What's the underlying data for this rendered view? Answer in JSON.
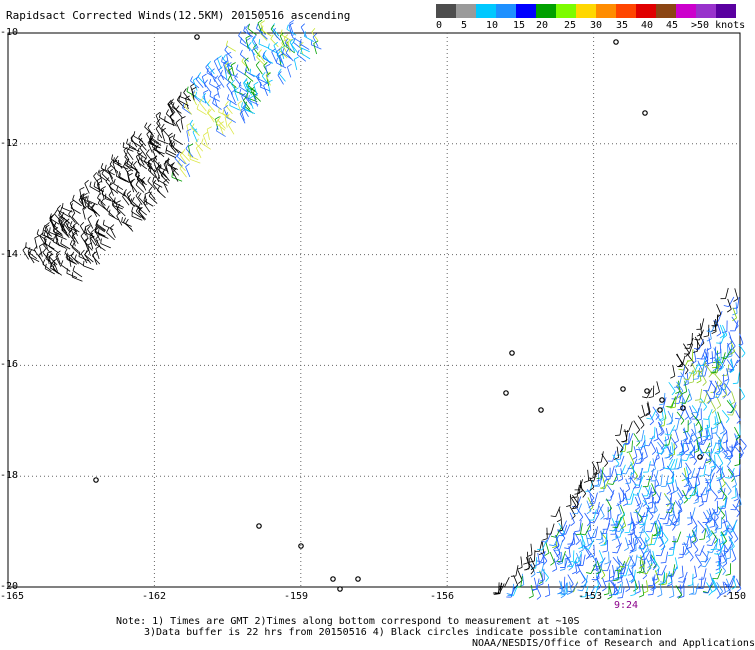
{
  "title": "Rapidsact Corrected Winds(12.5KM) 20150516 ascending",
  "legend": {
    "colors": [
      "#4d4d4d",
      "#9a9a9a",
      "#00c8ff",
      "#1e90ff",
      "#0000ff",
      "#00a000",
      "#7cfc00",
      "#ffd700",
      "#ff8c00",
      "#ff4500",
      "#e00000",
      "#8b4513",
      "#cc00cc",
      "#9932cc",
      "#5a00a0"
    ],
    "labels": [
      "0",
      "5",
      "10",
      "15",
      "20",
      "25",
      "30",
      "35",
      "40",
      "45",
      ">50 knots"
    ]
  },
  "axes": {
    "x_ticks": [
      "-165",
      "-162",
      "-159",
      "-156",
      "-153",
      "-150"
    ],
    "y_ticks": [
      "-10",
      "-12",
      "-14",
      "-16",
      "-18",
      "-20"
    ],
    "lon_range": [
      -165,
      -150
    ],
    "lat_range": [
      -20,
      -10
    ]
  },
  "time_label": "9:24",
  "footer": {
    "line1": "Note: 1) Times are GMT 2)Times along bottom correspond to measurement at ~10S",
    "line2": "3)Data buffer is 22 hrs from 20150516 4) Black circles indicate possible contamination",
    "line3": "NOAA/NESDIS/Office of Research and Applications"
  }
}
